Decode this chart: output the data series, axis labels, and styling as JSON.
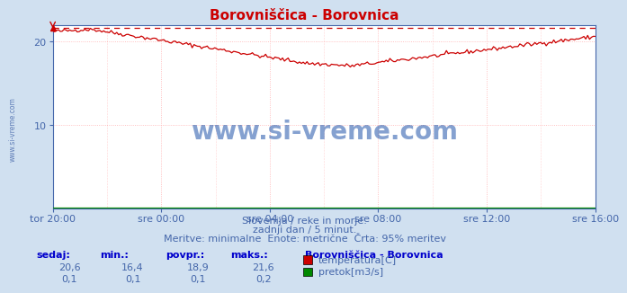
{
  "title": "Borovniščica - Borovnica",
  "title_color": "#cc0000",
  "bg_color": "#d0e0f0",
  "plot_bg_color": "#ffffff",
  "grid_color": "#ffb0b0",
  "grid_color_minor": "#ffe0e0",
  "axis_label_color": "#4466aa",
  "x_tick_labels": [
    "tor 20:00",
    "sre 00:00",
    "sre 04:00",
    "sre 08:00",
    "sre 12:00",
    "sre 16:00"
  ],
  "x_tick_positions": [
    0,
    48,
    96,
    144,
    192,
    240
  ],
  "n_points": 289,
  "temp_color": "#cc0000",
  "flow_color": "#008800",
  "dashed_line_value": 21.6,
  "dashed_line_color": "#cc0000",
  "y_min": 0,
  "y_max": 22.0,
  "y_ticks": [
    10,
    20
  ],
  "watermark": "www.si-vreme.com",
  "watermark_color": "#2255aa",
  "watermark_alpha": 0.55,
  "subtitle1": "Slovenija / reke in morje.",
  "subtitle2": "zadnji dan / 5 minut.",
  "subtitle3": "Meritve: minimalne  Enote: metrične  Črta: 95% meritev",
  "legend_title": "Borovniščica - Borovnica",
  "legend_items": [
    "temperatura[C]",
    "pretok[m3/s]"
  ],
  "legend_colors": [
    "#cc0000",
    "#008800"
  ],
  "table_headers": [
    "sedaj:",
    "min.:",
    "povpr.:",
    "maks.:"
  ],
  "table_row1": [
    "20,6",
    "16,4",
    "18,9",
    "21,6"
  ],
  "table_row2": [
    "0,1",
    "0,1",
    "0,1",
    "0,2"
  ],
  "sidebar_text": "www.si-vreme.com",
  "sidebar_color": "#4466aa",
  "header_color": "#0000cc",
  "value_color": "#4466aa",
  "title_fontsize": 11,
  "tick_fontsize": 8,
  "subtitle_fontsize": 8,
  "table_fontsize": 8
}
